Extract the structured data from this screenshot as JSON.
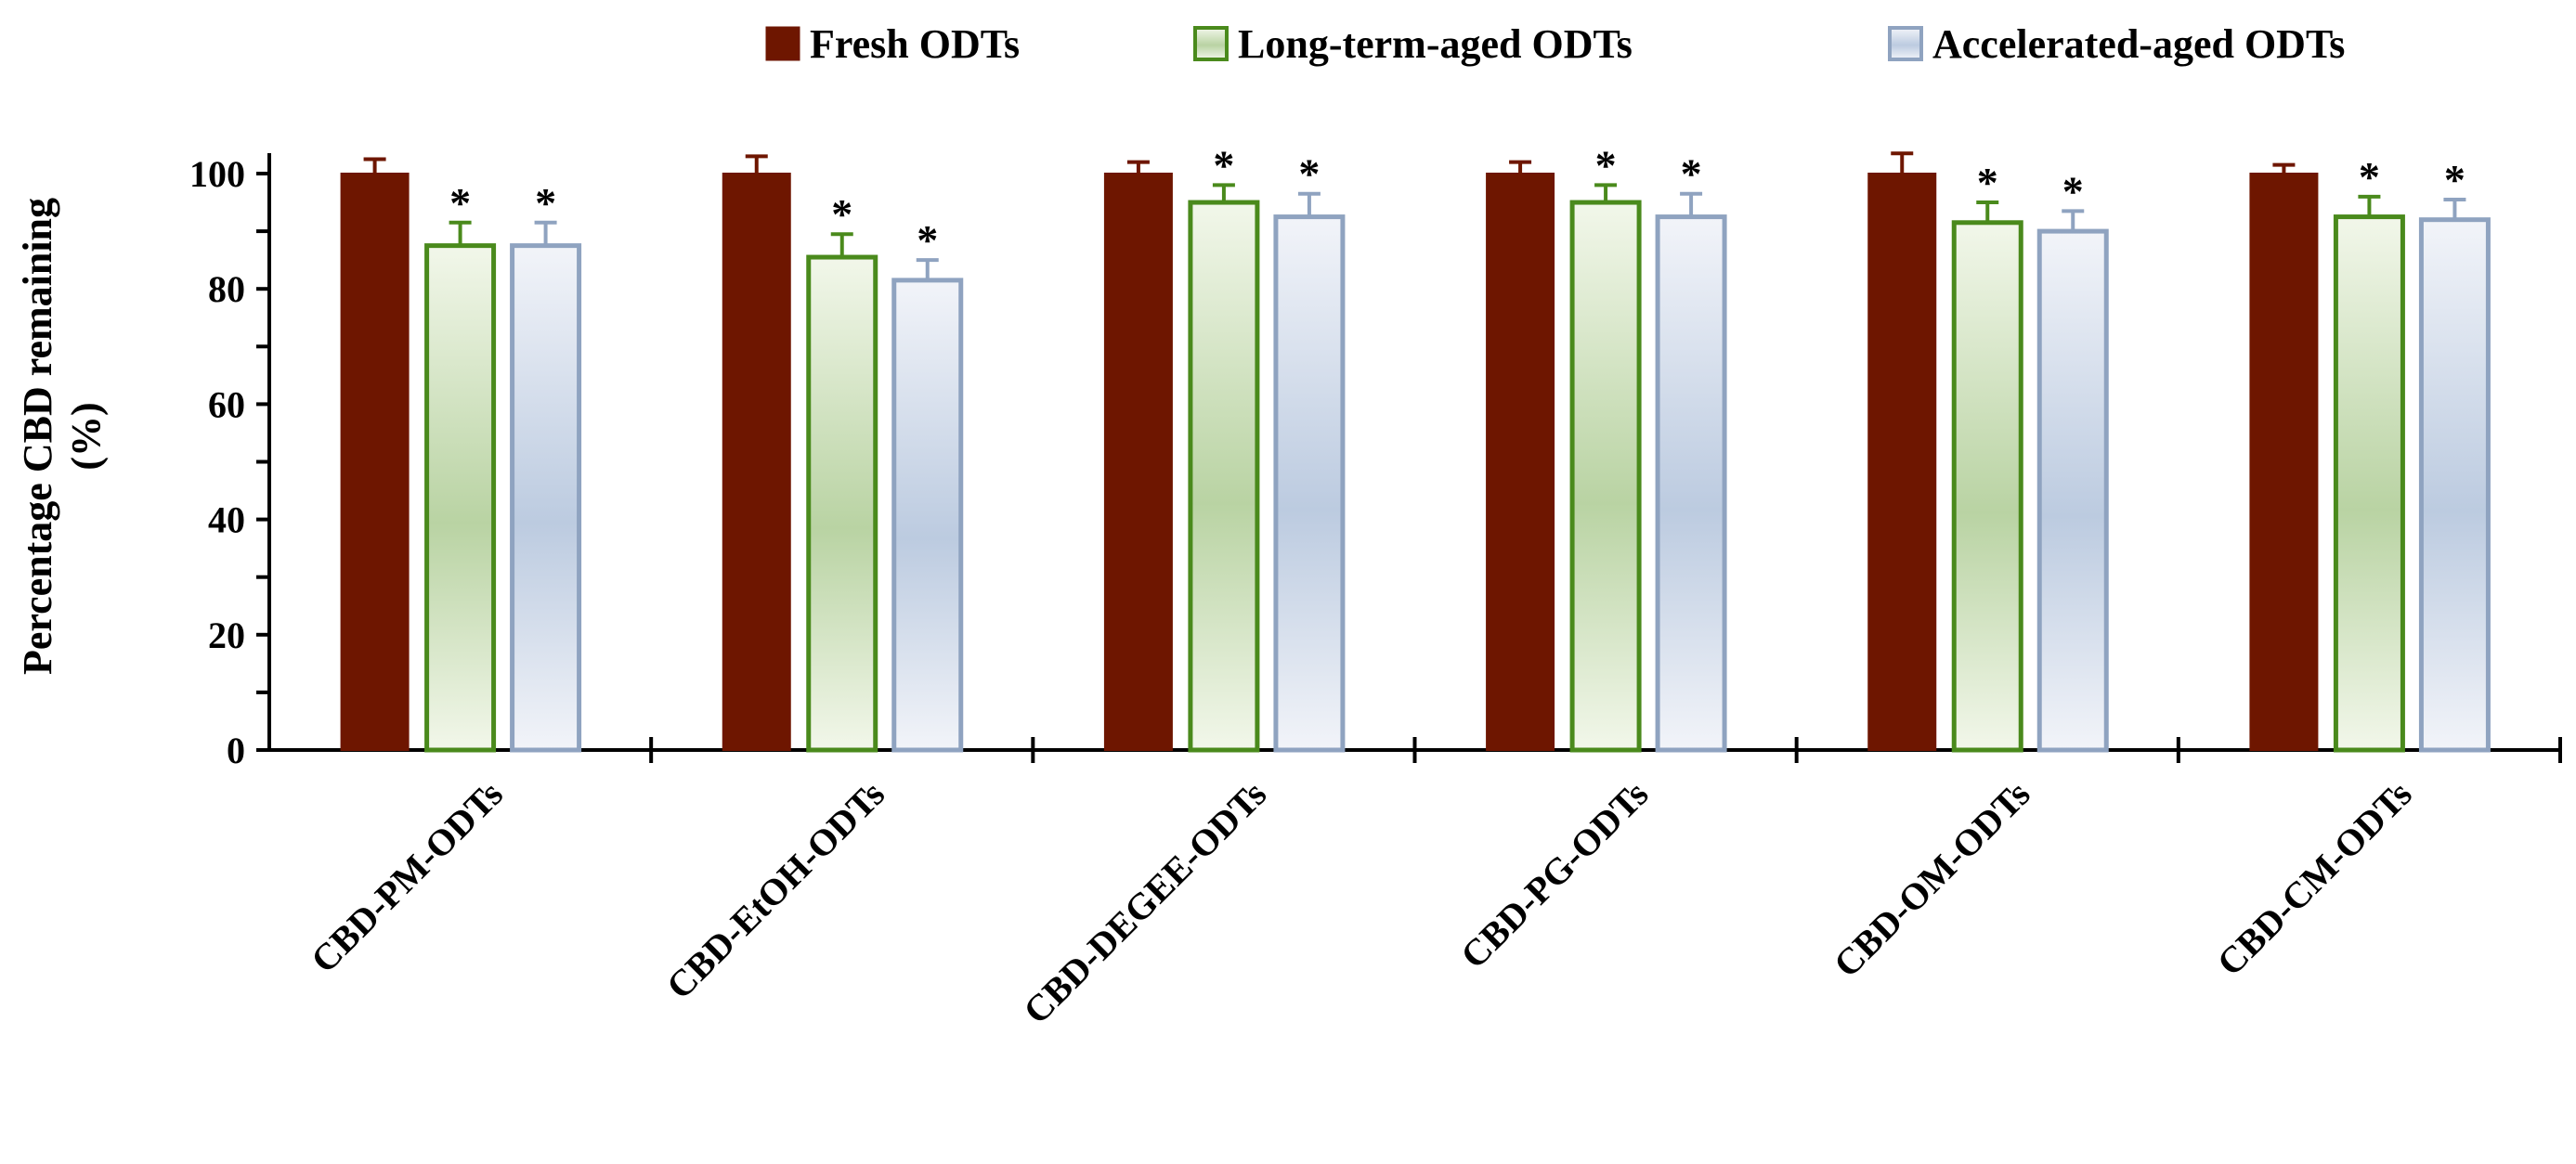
{
  "chart_data": {
    "type": "bar",
    "title": "",
    "xlabel": "",
    "ylabel": "Percentage CBD remaining (%)",
    "ylabel_lines": [
      "Percentage CBD remaining",
      "(%)"
    ],
    "ylim": [
      0,
      100
    ],
    "yticks": [
      0,
      20,
      40,
      60,
      80,
      100
    ],
    "grid": false,
    "legend_position": "top-right",
    "categories": [
      "CBD-PM-ODTs",
      "CBD-EtOH-ODTs",
      "CBD-DEGEE-ODTs",
      "CBD-PG-ODTs",
      "CBD-OM-ODTs",
      "CBD-CM-ODTs"
    ],
    "series": [
      {
        "name": "Fresh ODTs",
        "color": "#6e1600",
        "style": "solid",
        "values": [
          100,
          100,
          100,
          100,
          100,
          100
        ],
        "errors": [
          2.5,
          3,
          2,
          2,
          3.5,
          1.5
        ],
        "significance": [
          "",
          "",
          "",
          "",
          "",
          ""
        ]
      },
      {
        "name": "Long-term-aged ODTs",
        "color": "#4a8a1c",
        "style": "gradient-green",
        "values": [
          87.5,
          85.5,
          95,
          95,
          91.5,
          92.5
        ],
        "errors": [
          4,
          4,
          3,
          3,
          3.5,
          3.5
        ],
        "significance": [
          "*",
          "*",
          "*",
          "*",
          "*",
          "*"
        ]
      },
      {
        "name": "Accelerated-aged ODTs",
        "color": "#8fa3c0",
        "style": "gradient-blue",
        "values": [
          87.5,
          81.5,
          92.5,
          92.5,
          90,
          92
        ],
        "errors": [
          4,
          3.5,
          4,
          4,
          3.5,
          3.5
        ],
        "significance": [
          "*",
          "*",
          "*",
          "*",
          "*",
          "*"
        ]
      }
    ]
  }
}
